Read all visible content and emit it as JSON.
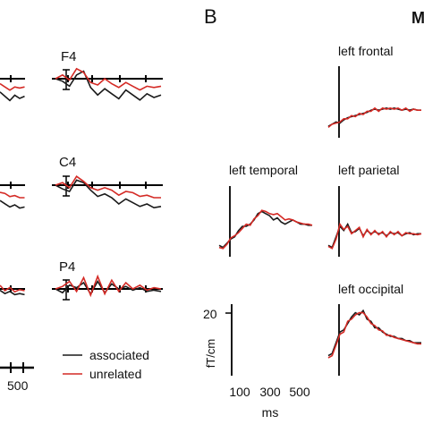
{
  "panel_labels": {
    "b": "B",
    "clipped": "M"
  },
  "legend": {
    "associated": {
      "label": "associated",
      "color": "#1a1a1a"
    },
    "unrelated": {
      "label": "unrelated",
      "color": "#d42a25"
    }
  },
  "panel_a": {
    "x_tick_label": "500",
    "channels": [
      {
        "label": "F4"
      },
      {
        "label": "C4"
      },
      {
        "label": "P4"
      }
    ]
  },
  "panel_b": {
    "regions": [
      {
        "label": "left frontal"
      },
      {
        "label": "left temporal"
      },
      {
        "label": "left parietal"
      },
      {
        "label": "left occipital"
      }
    ],
    "scale": {
      "y_tick": "20",
      "y_label": "fT/cm",
      "x_ticks": [
        "100",
        "300",
        "500"
      ],
      "x_label": "ms"
    }
  },
  "chart_data": [
    {
      "type": "line",
      "title": "",
      "panel": "A",
      "xlabel": "",
      "ylabel": "",
      "x_ticks": [
        "500"
      ],
      "series_names": [
        "associated",
        "unrelated"
      ],
      "channels": [
        {
          "label": "F4",
          "x": [
            0,
            50,
            100,
            150,
            200,
            250,
            300,
            350,
            400,
            450,
            500,
            550,
            600,
            650,
            700,
            750
          ],
          "series": [
            {
              "name": "associated",
              "values": [
                0,
                -0.2,
                -0.6,
                0.3,
                0.6,
                -0.7,
                -1.3,
                -0.8,
                -1.2,
                -1.6,
                -0.9,
                -1.3,
                -1.7,
                -1.2,
                -1.5,
                -1.3
              ]
            },
            {
              "name": "unrelated",
              "values": [
                0,
                0.3,
                -0.1,
                0.8,
                0.5,
                -0.3,
                -0.5,
                0.0,
                -0.4,
                -0.7,
                -0.3,
                -0.6,
                -0.9,
                -0.6,
                -0.7,
                -0.6
              ]
            }
          ]
        },
        {
          "label": "C4",
          "x": [
            0,
            50,
            100,
            150,
            200,
            250,
            300,
            350,
            400,
            450,
            500,
            550,
            600,
            650,
            700,
            750
          ],
          "series": [
            {
              "name": "associated",
              "values": [
                0,
                -0.3,
                -0.5,
                0.4,
                0.2,
                -0.4,
                -0.9,
                -0.7,
                -1.0,
                -1.5,
                -1.1,
                -1.4,
                -1.7,
                -1.5,
                -1.8,
                -1.7
              ]
            },
            {
              "name": "unrelated",
              "values": [
                0,
                0.2,
                -0.2,
                0.7,
                0.3,
                -0.2,
                -0.4,
                -0.2,
                -0.4,
                -0.8,
                -0.5,
                -0.6,
                -0.9,
                -0.8,
                -1.0,
                -1.0
              ]
            }
          ]
        },
        {
          "label": "P4",
          "x": [
            0,
            50,
            100,
            150,
            200,
            250,
            300,
            350,
            400,
            450,
            500,
            550,
            600,
            650,
            700,
            750
          ],
          "series": [
            {
              "name": "associated",
              "values": [
                0,
                -0.3,
                0.3,
                0.1,
                0.5,
                -0.4,
                0.6,
                -0.3,
                0.4,
                0.0,
                0.2,
                -0.1,
                0.1,
                -0.2,
                -0.1,
                -0.2
              ]
            },
            {
              "name": "unrelated",
              "values": [
                0,
                0.2,
                0.6,
                -0.2,
                0.9,
                -0.5,
                1.0,
                -0.4,
                0.7,
                -0.2,
                0.5,
                0.0,
                0.3,
                -0.1,
                0.1,
                0.0
              ]
            }
          ]
        }
      ]
    },
    {
      "type": "line",
      "title": "",
      "panel": "B",
      "xlabel": "ms",
      "ylabel": "fT/cm",
      "x_ticks": [
        100,
        300,
        500
      ],
      "y_ticks": [
        20
      ],
      "xlim": [
        0,
        600
      ],
      "ylim": [
        0,
        30
      ],
      "series_names": [
        "associated",
        "unrelated"
      ],
      "regions": [
        {
          "label": "left frontal",
          "x": [
            0,
            25,
            50,
            75,
            100,
            125,
            150,
            175,
            200,
            225,
            250,
            275,
            300,
            325,
            350,
            375,
            400,
            425,
            450,
            475,
            500,
            525,
            550,
            575,
            600
          ],
          "series": [
            {
              "name": "associated",
              "values": [
                2,
                3,
                4,
                3.5,
                5,
                6,
                6.5,
                7,
                7.5,
                8,
                8.5,
                9.5,
                10,
                9.5,
                10,
                10.5,
                10,
                10.5,
                10,
                9.5,
                10,
                9.5,
                10,
                9.5,
                9.5
              ]
            },
            {
              "name": "unrelated",
              "values": [
                1.5,
                3,
                3.5,
                4,
                5.5,
                5.5,
                7,
                6.5,
                8,
                7.5,
                9,
                9,
                10.5,
                9,
                10.5,
                10,
                10.5,
                10,
                10.5,
                9.5,
                10.5,
                9,
                10,
                9.5,
                9.5
              ]
            }
          ]
        },
        {
          "label": "left temporal",
          "x": [
            0,
            25,
            50,
            75,
            100,
            125,
            150,
            175,
            200,
            225,
            250,
            275,
            300,
            325,
            350,
            375,
            400,
            425,
            450,
            475,
            500,
            525,
            550,
            575,
            600
          ],
          "series": [
            {
              "name": "associated",
              "values": [
                2,
                1,
                3,
                5,
                6,
                9,
                11,
                11,
                12,
                14,
                17,
                18,
                17,
                16,
                14,
                15,
                13,
                12,
                13,
                14,
                13,
                12,
                12,
                11.5,
                11.5
              ]
            },
            {
              "name": "unrelated",
              "values": [
                1,
                0.5,
                2.5,
                5.5,
                6.5,
                8,
                10,
                12,
                11.5,
                14.5,
                16,
                18.5,
                18,
                17,
                16.5,
                17,
                15.5,
                14,
                14.5,
                14,
                13,
                12.5,
                12,
                12,
                11.5
              ]
            }
          ]
        },
        {
          "label": "left parietal",
          "x": [
            0,
            25,
            50,
            75,
            100,
            125,
            150,
            175,
            200,
            225,
            250,
            275,
            300,
            325,
            350,
            375,
            400,
            425,
            450,
            475,
            500,
            525,
            550,
            575,
            600
          ],
          "series": [
            {
              "name": "associated",
              "values": [
                2,
                1,
                6,
                11,
                9,
                12,
                8,
                8.5,
                10,
                6.5,
                9,
                7.5,
                8.5,
                7.5,
                8,
                6.5,
                8,
                7.5,
                8,
                6.5,
                7.5,
                8,
                7,
                7.5,
                7.5
              ]
            },
            {
              "name": "unrelated",
              "values": [
                1.5,
                0.5,
                5,
                12,
                9.5,
                11,
                7.5,
                9,
                10.5,
                6,
                9.5,
                7,
                9,
                7,
                8.5,
                6,
                8.5,
                7,
                8.5,
                6.5,
                8,
                7.5,
                7.5,
                7,
                7.5
              ]
            }
          ]
        },
        {
          "label": "left occipital",
          "x": [
            0,
            25,
            50,
            75,
            100,
            125,
            150,
            175,
            200,
            225,
            250,
            275,
            300,
            325,
            350,
            375,
            400,
            425,
            450,
            475,
            500,
            525,
            550,
            575,
            600
          ],
          "series": [
            {
              "name": "associated",
              "values": [
                6,
                7,
                12,
                17,
                18,
                21,
                24,
                26,
                25,
                27,
                23,
                22,
                19,
                19,
                17,
                16,
                15,
                15,
                14,
                14,
                13,
                13,
                12,
                12,
                12
              ]
            },
            {
              "name": "unrelated",
              "values": [
                5,
                6,
                11,
                16,
                17,
                22,
                23,
                25,
                26,
                26,
                24,
                21,
                20,
                18,
                17.5,
                15.5,
                15.5,
                14.5,
                14,
                13.5,
                13,
                12.5,
                12,
                11.5,
                11.5
              ]
            }
          ]
        }
      ]
    }
  ]
}
